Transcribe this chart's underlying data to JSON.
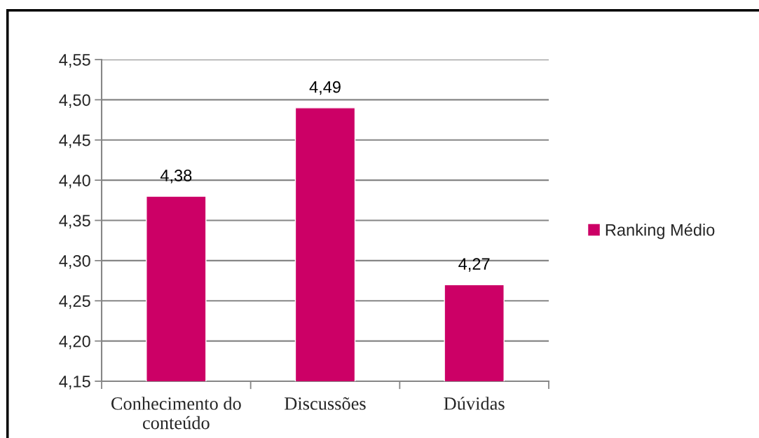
{
  "chart_data": {
    "type": "bar",
    "categories": [
      "Conhecimento do\nconteúdo",
      "Discussões",
      "Dúvidas"
    ],
    "series": [
      {
        "name": "Ranking Médio",
        "color": "#cc0066",
        "values": [
          4.38,
          4.49,
          4.27
        ],
        "value_labels": [
          "4,38",
          "4,49",
          "4,27"
        ]
      }
    ],
    "ylim": [
      4.15,
      4.55
    ],
    "yticks": [
      {
        "value": 4.15,
        "label": "4,15"
      },
      {
        "value": 4.2,
        "label": "4,20"
      },
      {
        "value": 4.25,
        "label": "4,25"
      },
      {
        "value": 4.3,
        "label": "4,30"
      },
      {
        "value": 4.35,
        "label": "4,35"
      },
      {
        "value": 4.4,
        "label": "4,40"
      },
      {
        "value": 4.45,
        "label": "4,45"
      },
      {
        "value": 4.5,
        "label": "4,50"
      },
      {
        "value": 4.55,
        "label": "4,55"
      }
    ],
    "grid": "y",
    "legend": "right"
  }
}
